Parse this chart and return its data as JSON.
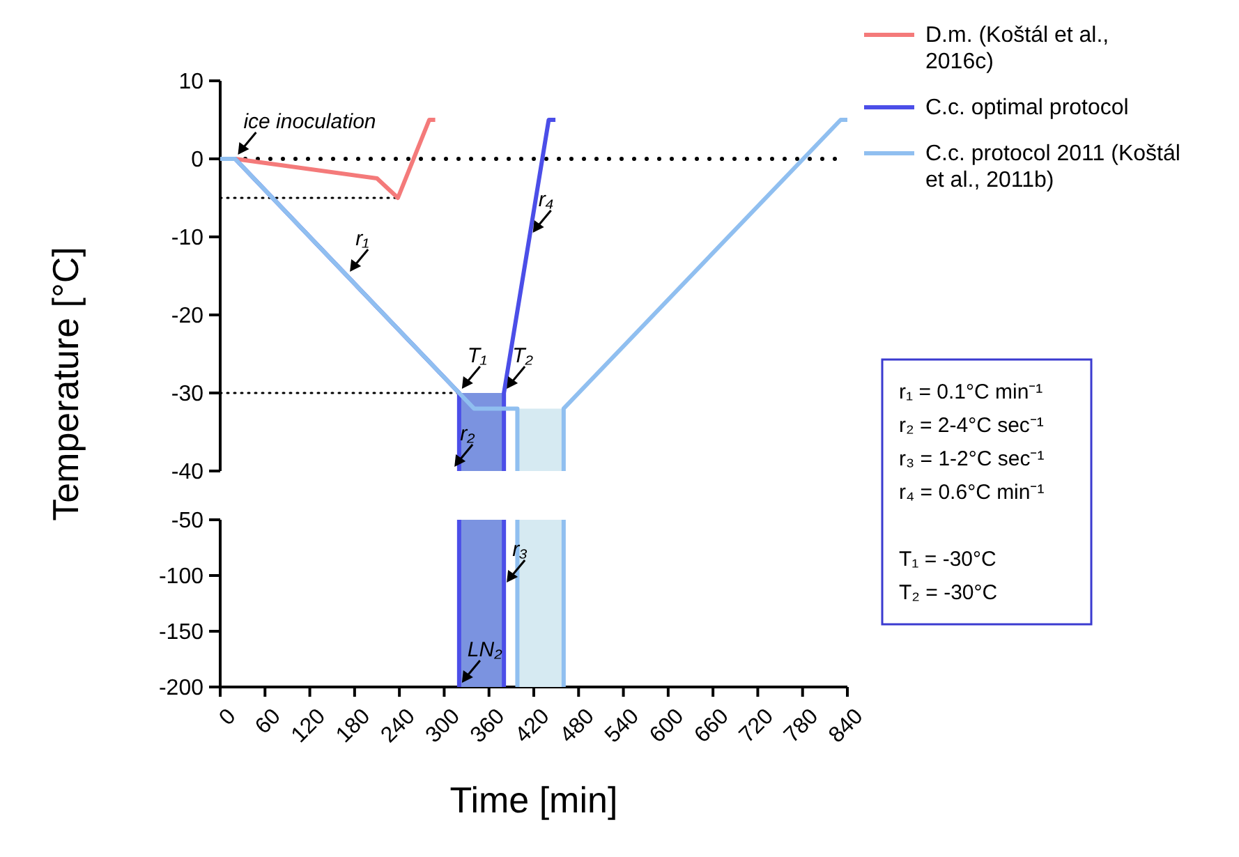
{
  "chart_data": [
    {
      "type": "line",
      "ylabel": "Temperature [°C]",
      "xlim": [
        0,
        840
      ],
      "ylim": [
        -40,
        10
      ],
      "yticks": [
        10,
        0,
        -10,
        -20,
        -30,
        -40
      ],
      "tick_labels": "y",
      "grid": false,
      "legend": "right",
      "marker": "none",
      "ref_lines": [
        {
          "axis": "y",
          "value": 0,
          "color": "#000000",
          "line_style": "dotted"
        }
      ],
      "series": [
        {
          "type": "area",
          "color": "#d6eaf2",
          "x": [
            398,
            398,
            460,
            460
          ],
          "values": [
            -40,
            -32,
            -32,
            -40
          ]
        },
        {
          "type": "area",
          "color": "#7b93e0",
          "x": [
            320,
            320,
            380,
            380
          ],
          "values": [
            -40,
            -30,
            -30,
            -40
          ]
        },
        {
          "type": "line",
          "color": "#000000",
          "line_style": "dotted",
          "x": [
            0,
            238
          ],
          "values": [
            -5,
            -5
          ]
        },
        {
          "type": "line",
          "color": "#000000",
          "line_style": "dotted",
          "x": [
            0,
            320
          ],
          "values": [
            -30,
            -30
          ]
        },
        {
          "type": "line",
          "name": "D.m. (Koštál et al., 2016c)",
          "color": "#f47a7a",
          "x": [
            0,
            20,
            210,
            238,
            280,
            288
          ],
          "values": [
            0,
            0,
            -2.5,
            -5,
            5,
            5
          ]
        },
        {
          "type": "line",
          "name": "C.c. optimal protocol",
          "color": "#4b4ee8",
          "x": [
            0,
            20,
            320,
            320,
            350,
            380,
            380,
            440,
            449
          ],
          "values": [
            0,
            0,
            -30,
            -40,
            null,
            -40,
            -30,
            5,
            5
          ]
        },
        {
          "type": "line",
          "name": "C.c. protocol 2011 (Koštál et al., 2011b)",
          "color": "#90bff0",
          "x": [
            0,
            20,
            320,
            340,
            398,
            398,
            429,
            460,
            460,
            831,
            840
          ],
          "values": [
            0,
            0,
            -30,
            -32,
            -32,
            -40,
            null,
            -40,
            -32,
            5,
            5
          ]
        }
      ],
      "annotations": [
        {
          "text": "ice inoculation",
          "x": 20,
          "y": 0
        },
        {
          "text": "r₁",
          "x": 170,
          "y": -15
        },
        {
          "text": "T₁",
          "x": 320,
          "y": -30
        },
        {
          "text": "T₂",
          "x": 380,
          "y": -30
        },
        {
          "text": "r₂",
          "x": 310,
          "y": -40
        },
        {
          "text": "r₄",
          "x": 415,
          "y": -10
        },
        "r₁ = 0.1°C min⁻¹",
        "r₂ = 2-4°C sec⁻¹",
        "r₃ = 1-2°C sec⁻¹",
        "r₄ = 0.6°C min⁻¹",
        "T₁ = -30°C",
        "T₂ = -30°C"
      ]
    },
    {
      "type": "line",
      "xlabel": "Time [min]",
      "xlim": [
        0,
        840
      ],
      "xticks": [
        0,
        60,
        120,
        180,
        240,
        300,
        360,
        420,
        480,
        540,
        600,
        660,
        720,
        780,
        840
      ],
      "ylim": [
        -200,
        -50
      ],
      "yticks": [
        -50,
        -100,
        -150,
        -200
      ],
      "grid": false,
      "bands": [
        {
          "axis": "x",
          "from": 320,
          "to": 380,
          "color": "#7b93e0"
        },
        {
          "axis": "x",
          "from": 398,
          "to": 460,
          "color": "#d6eaf2"
        }
      ],
      "ref_lines": [
        {
          "axis": "x",
          "value": 320,
          "color": "#4b4ee8"
        },
        {
          "axis": "x",
          "value": 380,
          "color": "#4b4ee8"
        },
        {
          "axis": "x",
          "value": 398,
          "color": "#90bff0"
        },
        {
          "axis": "x",
          "value": 460,
          "color": "#90bff0"
        }
      ],
      "annotations": [
        {
          "text": "LN₂",
          "x": 320,
          "y": -200
        },
        {
          "text": "r₃",
          "x": 380,
          "y": -110
        }
      ]
    }
  ]
}
